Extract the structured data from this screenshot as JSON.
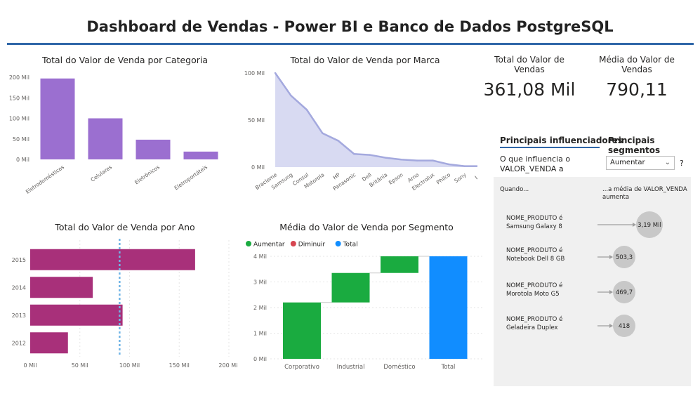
{
  "title": "Dashboard de Vendas - Power BI e Banco de Dados PostgreSQL",
  "chart_data": [
    {
      "id": "categoria",
      "type": "bar",
      "title": "Total do Valor de Venda por Categoria",
      "categories": [
        "Eletrodomésticos",
        "Celulares",
        "Eletrônicos",
        "Eletroportáteis"
      ],
      "values": [
        197,
        100,
        48,
        19
      ],
      "yticks": [
        "0 Mil",
        "50 Mil",
        "100 Mil",
        "150 Mil",
        "200 Mil"
      ],
      "ylim": [
        0,
        200
      ],
      "color": "#9b6fd0"
    },
    {
      "id": "marca",
      "type": "area",
      "title": "Total do Valor de Venda por Marca",
      "categories": [
        "Bracleme",
        "Samsung",
        "Consul",
        "Motorola",
        "HP",
        "Panasonic",
        "Dell",
        "Britânia",
        "Epson",
        "Arno",
        "Electrolux",
        "Philco",
        "Sony",
        "LG"
      ],
      "values": [
        100,
        76,
        61,
        36,
        28,
        14,
        13,
        10,
        8,
        7,
        7,
        3,
        1,
        1
      ],
      "yticks": [
        "0 Mil",
        "50 Mil",
        "100 Mil"
      ],
      "ylim": [
        0,
        100
      ],
      "color": "#a4a9de"
    },
    {
      "id": "ano",
      "type": "bar",
      "orientation": "horizontal",
      "title": "Total do Valor de Venda por Ano",
      "categories": [
        "2015",
        "2014",
        "2013",
        "2012"
      ],
      "values": [
        166,
        63,
        93,
        38
      ],
      "xticks": [
        "0 Mil",
        "50 Mil",
        "100 Mil",
        "150 Mil",
        "200 Mil"
      ],
      "xlim": [
        0,
        200
      ],
      "average_line": 90,
      "color": "#a8307a"
    },
    {
      "id": "segmento",
      "type": "bar",
      "subtype": "waterfall",
      "title": "Média do Valor de Venda por Segmento",
      "legend": [
        {
          "label": "Aumentar",
          "color": "#1aab40"
        },
        {
          "label": "Diminuir",
          "color": "#d64550"
        },
        {
          "label": "Total",
          "color": "#118dff"
        }
      ],
      "categories": [
        "Corporativo",
        "Industrial",
        "Doméstico",
        "Total"
      ],
      "increments": [
        2.2,
        1.15,
        0.65,
        4.0
      ],
      "kinds": [
        "increase",
        "increase",
        "increase",
        "total"
      ],
      "yticks": [
        "0 Mil",
        "1 Mil",
        "2 Mil",
        "3 Mil",
        "4 Mil"
      ],
      "ylim": [
        0,
        4
      ]
    }
  ],
  "kpis": [
    {
      "label": "Total do Valor de Vendas",
      "value": "361,08 Mil"
    },
    {
      "label": "Média do Valor de Vendas",
      "value": "790,11"
    }
  ],
  "influencers": {
    "tab_active": "Principais influenciadores",
    "tab_other": "Principais segmentos",
    "question_line1": "O que influencia o",
    "question_line2": "VALOR_VENDA a",
    "dropdown_value": "Aumentar",
    "help": "?",
    "when_label": "Quando...",
    "avg_label_line1": "...a média de VALOR_VENDA",
    "avg_label_line2": "aumenta",
    "items": [
      {
        "line1": "NOME_PRODUTO é",
        "line2": "Samsung Galaxy 8",
        "value": "3,19 Mil"
      },
      {
        "line1": "NOME_PRODUTO é",
        "line2": "Notebook Dell 8 GB",
        "value": "503,3"
      },
      {
        "line1": "NOME_PRODUTO é",
        "line2": "Morotola Moto G5",
        "value": "469,7"
      },
      {
        "line1": "NOME_PRODUTO é",
        "line2": "Geladeira Duplex",
        "value": "418"
      }
    ]
  }
}
